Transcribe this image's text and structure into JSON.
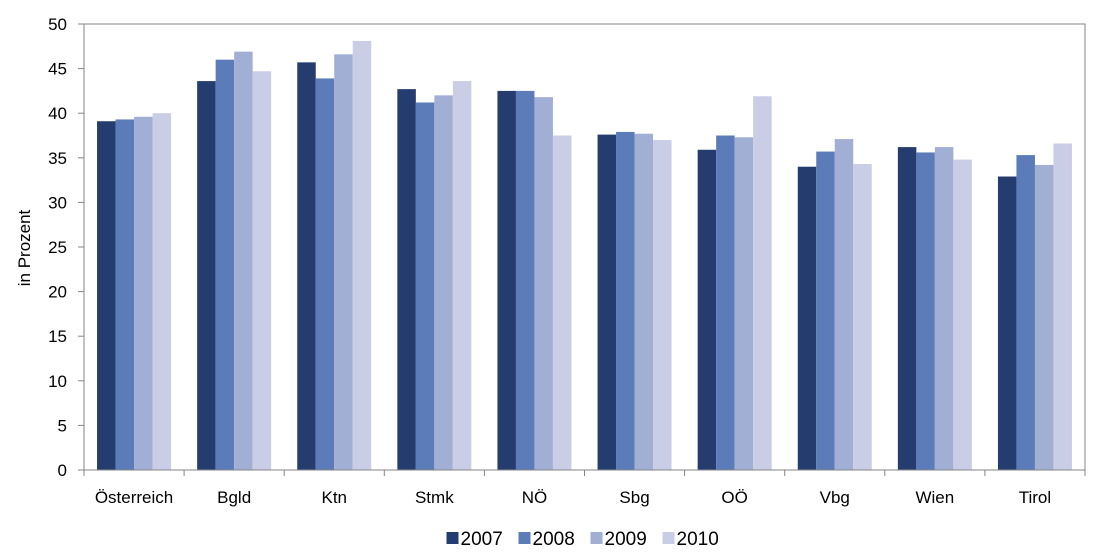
{
  "chart_data": {
    "type": "bar",
    "title": "",
    "xlabel": "",
    "ylabel": "in Prozent",
    "ylim": [
      0,
      50
    ],
    "yticks": [
      0,
      5,
      10,
      15,
      20,
      25,
      30,
      35,
      40,
      45,
      50
    ],
    "grid": false,
    "legend_position": "bottom",
    "categories": [
      "Österreich",
      "Bgld",
      "Ktn",
      "Stmk",
      "NÖ",
      "Sbg",
      "OÖ",
      "Vbg",
      "Wien",
      "Tirol"
    ],
    "series": [
      {
        "name": "2007",
        "color": "#253d6e",
        "values": [
          39.1,
          43.6,
          45.7,
          42.7,
          42.5,
          37.6,
          35.9,
          34.0,
          36.2,
          32.9
        ]
      },
      {
        "name": "2008",
        "color": "#5b7cb8",
        "values": [
          39.3,
          46.0,
          43.9,
          41.2,
          42.5,
          37.9,
          37.5,
          35.7,
          35.6,
          35.3
        ]
      },
      {
        "name": "2009",
        "color": "#a2afd5",
        "values": [
          39.6,
          46.9,
          46.6,
          42.0,
          41.8,
          37.7,
          37.3,
          37.1,
          36.2,
          34.2
        ]
      },
      {
        "name": "2010",
        "color": "#c9cde5",
        "values": [
          40.0,
          44.7,
          48.1,
          43.6,
          37.5,
          37.0,
          41.9,
          34.3,
          34.8,
          36.6
        ]
      }
    ]
  }
}
